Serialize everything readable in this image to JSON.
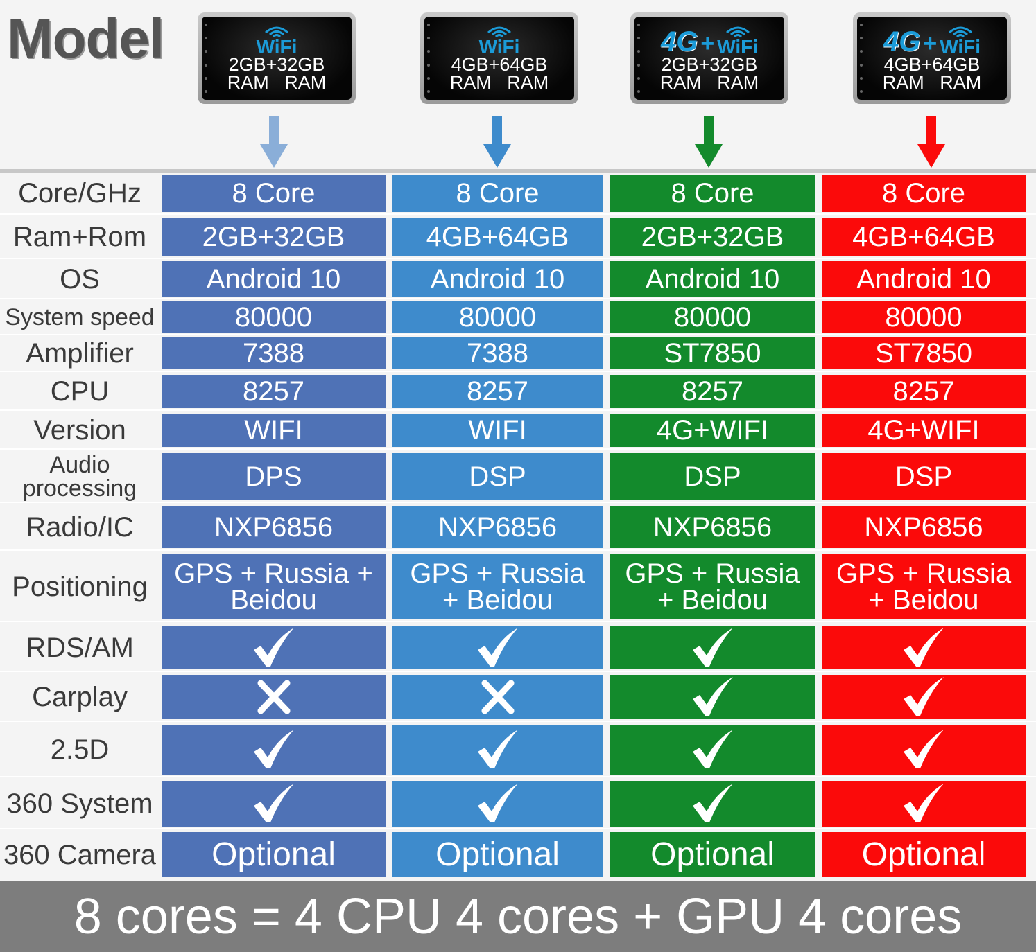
{
  "title": "Model",
  "models": [
    {
      "net": "WiFi",
      "has4g": false,
      "ram_line": "2GB+32GB",
      "ram_sub": "RAM   RAM",
      "arrow_color": "#8aaed8"
    },
    {
      "net": "WiFi",
      "has4g": false,
      "ram_line": "4GB+64GB",
      "ram_sub": "RAM   RAM",
      "arrow_color": "#3e8bcc"
    },
    {
      "net": "WiFi",
      "has4g": true,
      "net4g": "4G",
      "plus": "+",
      "ram_line": "2GB+32GB",
      "ram_sub": "RAM   RAM",
      "arrow_color": "#138a2c"
    },
    {
      "net": "WiFi",
      "has4g": true,
      "net4g": "4G",
      "plus": "+",
      "ram_line": "4GB+64GB",
      "ram_sub": "RAM   RAM",
      "arrow_color": "#fb0a0a"
    }
  ],
  "column_colors": [
    "#4f72b6",
    "#3e8bcc",
    "#138a2c",
    "#fb0a0a"
  ],
  "rows": [
    {
      "label": "Core/GHz",
      "values": [
        "8 Core",
        "8 Core",
        "8 Core",
        "8 Core"
      ]
    },
    {
      "label": "Ram+Rom",
      "values": [
        "2GB+32GB",
        "4GB+64GB",
        "2GB+32GB",
        "4GB+64GB"
      ]
    },
    {
      "label": "OS",
      "values": [
        "Android 10",
        "Android 10",
        "Android 10",
        "Android 10"
      ]
    },
    {
      "label": "System speed",
      "values": [
        "80000",
        "80000",
        "80000",
        "80000"
      ]
    },
    {
      "label": "Amplifier",
      "values": [
        "7388",
        "7388",
        "ST7850",
        "ST7850"
      ]
    },
    {
      "label": "CPU",
      "values": [
        "8257",
        "8257",
        "8257",
        "8257"
      ]
    },
    {
      "label": "Version",
      "values": [
        "WIFI",
        "WIFI",
        "4G+WIFI",
        "4G+WIFI"
      ]
    },
    {
      "label": "Audio processing",
      "values": [
        "DPS",
        "DSP",
        "DSP",
        "DSP"
      ]
    },
    {
      "label": "Radio/IC",
      "values": [
        "NXP6856",
        "NXP6856",
        "NXP6856",
        "NXP6856"
      ]
    },
    {
      "label": "Positioning",
      "values": [
        "GPS + Russia + Beidou",
        "GPS + Russia + Beidou",
        "GPS + Russia + Beidou",
        "GPS + Russia + Beidou"
      ]
    },
    {
      "label": "RDS/AM",
      "values": [
        "check",
        "check",
        "check",
        "check"
      ]
    },
    {
      "label": "Carplay",
      "values": [
        "cross",
        "cross",
        "check",
        "check"
      ]
    },
    {
      "label": "2.5D",
      "values": [
        "check",
        "check",
        "check",
        "check"
      ]
    },
    {
      "label": "360 System",
      "values": [
        "check",
        "check",
        "check",
        "check"
      ]
    },
    {
      "label": "360 Camera",
      "values": [
        "Optional",
        "Optional",
        "Optional",
        "Optional"
      ]
    }
  ],
  "footer": "8 cores = 4 CPU 4 cores + GPU 4 cores"
}
